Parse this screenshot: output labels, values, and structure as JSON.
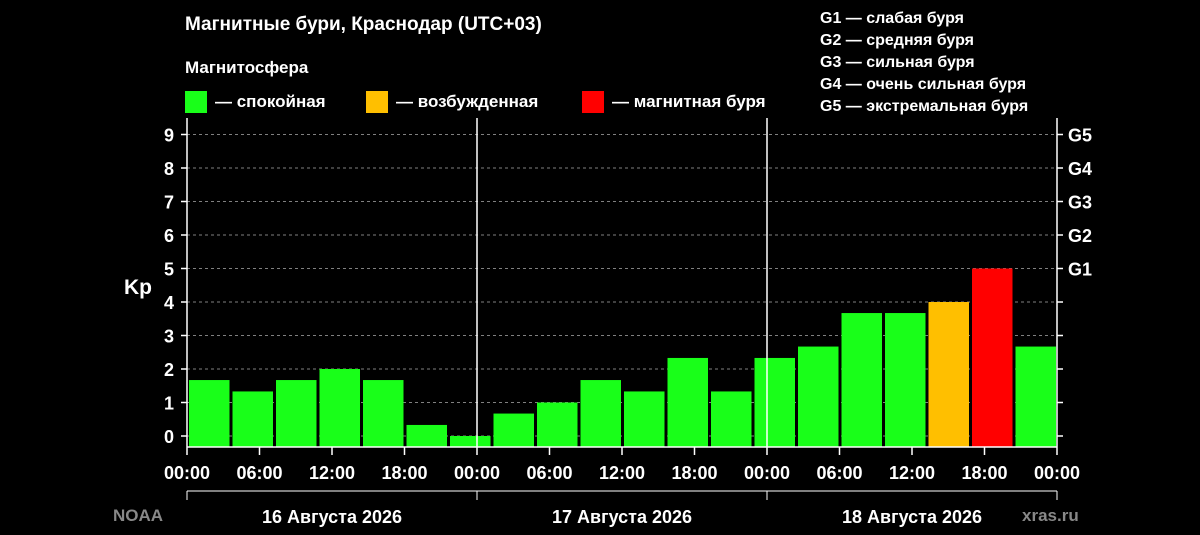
{
  "title": "Магнитные бури, Краснодар (UTC+03)",
  "subtitle": "Магнитосфера",
  "colors": {
    "quiet": "#19ff19",
    "excited": "#ffbf00",
    "storm": "#ff0000",
    "background": "#000000",
    "grid": "#808080"
  },
  "legend": [
    {
      "key": "quiet",
      "label": "— спокойная"
    },
    {
      "key": "excited",
      "label": "— возбужденная"
    },
    {
      "key": "storm",
      "label": "— магнитная буря"
    }
  ],
  "g_legend": [
    "G1 — слабая буря",
    "G2 — средняя буря",
    "G3 — сильная буря",
    "G4 — очень сильная буря",
    "G5 — экстремальная буря"
  ],
  "footer": {
    "left": "NOAA",
    "right": "xras.ru"
  },
  "chart_data": {
    "type": "bar",
    "ylabel": "Kp",
    "ylim": [
      0,
      9
    ],
    "yticks": [
      "0",
      "1",
      "2",
      "3",
      "4",
      "5",
      "6",
      "7",
      "8",
      "9"
    ],
    "right_ticks": [
      {
        "label": "G1",
        "value": 5
      },
      {
        "label": "G2",
        "value": 6
      },
      {
        "label": "G3",
        "value": 7
      },
      {
        "label": "G4",
        "value": 8
      },
      {
        "label": "G5",
        "value": 9
      }
    ],
    "grid": true,
    "xtick_labels": [
      "00:00",
      "06:00",
      "12:00",
      "18:00",
      "00:00",
      "06:00",
      "12:00",
      "18:00",
      "00:00",
      "06:00",
      "12:00",
      "18:00",
      "00:00"
    ],
    "days": [
      "16 Августа 2026",
      "17 Августа 2026",
      "18 Августа 2026"
    ],
    "interval_hours": 3,
    "values": [
      1.67,
      1.33,
      1.67,
      2.0,
      1.67,
      0.33,
      0.0,
      0.67,
      1.0,
      1.67,
      1.33,
      2.33,
      1.33,
      2.33,
      2.67,
      3.67,
      3.67,
      4.0,
      5.0,
      2.67
    ],
    "levels": [
      "quiet",
      "quiet",
      "quiet",
      "quiet",
      "quiet",
      "quiet",
      "quiet",
      "quiet",
      "quiet",
      "quiet",
      "quiet",
      "quiet",
      "quiet",
      "quiet",
      "quiet",
      "quiet",
      "quiet",
      "excited",
      "storm",
      "quiet"
    ]
  }
}
